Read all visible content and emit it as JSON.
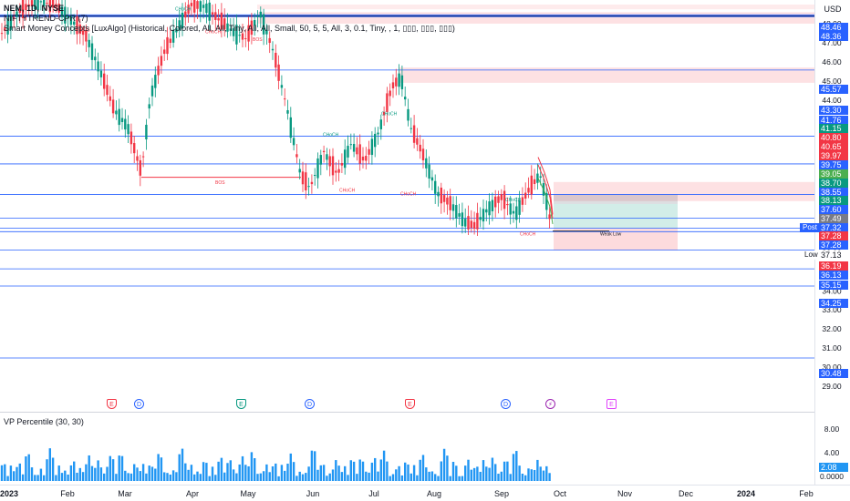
{
  "legend": {
    "symbol": "NEM, 1D, NYSE",
    "indicator_1": "NIFTYTREND-CPR  (7)",
    "indicator_2": "Smart Money Concepts [LuxAlgo] (Historical, Colored, All, All, Tiny, All, All, Small, 50, 5, 5, All, 3, 0.1, Tiny, , 1, ▯▯▯, ▯▯▯, ▯▯▯)"
  },
  "currency": "USD",
  "volume_pane": {
    "title": "VP Percentile (30, 30)"
  },
  "colors": {
    "up": "#089981",
    "down": "#f23645",
    "level_line": "#2962ff",
    "zone_red": "#f23645",
    "zone_green": "#089981",
    "volume": "#2196f3"
  },
  "price_scale": {
    "ticks": [
      "48.00",
      "47.00",
      "46.00",
      "45.00",
      "44.00",
      "43.00",
      "42.00",
      "41.00",
      "40.00",
      "39.00",
      "38.00",
      "37.00",
      "36.00",
      "35.00",
      "34.00",
      "33.00",
      "32.00",
      "31.00",
      "30.00",
      "29.00"
    ],
    "tags": [
      {
        "text": "48.46",
        "color": "#2962ff"
      },
      {
        "text": "48.36",
        "color": "#2962ff"
      },
      {
        "text": "45.57",
        "color": "#2962ff"
      },
      {
        "text": "43.30",
        "color": "#2962ff"
      },
      {
        "text": "41.76",
        "color": "#2962ff"
      },
      {
        "text": "41.15",
        "color": "#089981"
      },
      {
        "text": "40.80",
        "color": "#f23645"
      },
      {
        "text": "40.65",
        "color": "#f23645"
      },
      {
        "text": "39.97",
        "color": "#f23645"
      },
      {
        "text": "39.75",
        "color": "#2962ff"
      },
      {
        "text": "39.05",
        "color": "#4caf50"
      },
      {
        "text": "38.70",
        "color": "#089981"
      },
      {
        "text": "38.55",
        "color": "#2962ff"
      },
      {
        "text": "38.13",
        "color": "#089981"
      },
      {
        "text": "37.60",
        "color": "#2962ff"
      },
      {
        "text": "37.49",
        "color": "#787b86"
      },
      {
        "text": "37.32",
        "color": "#2962ff"
      },
      {
        "text": "37.28",
        "color": "#f23645"
      },
      {
        "text": "37.28",
        "color": "#2962ff"
      },
      {
        "text": "37.13",
        "color": "#ffffff"
      },
      {
        "text": "36.19",
        "color": "#f23645"
      },
      {
        "text": "36.13",
        "color": "#2962ff"
      },
      {
        "text": "35.15",
        "color": "#2962ff"
      },
      {
        "text": "34.25",
        "color": "#2962ff"
      },
      {
        "text": "30.48",
        "color": "#2962ff"
      }
    ],
    "side_labels": [
      {
        "text": "Post"
      },
      {
        "text": "Low"
      }
    ]
  },
  "volume_scale": {
    "ticks": [
      "8.00",
      "4.00",
      "0.0000"
    ],
    "last": "2.08"
  },
  "time_axis": [
    "2023",
    "Feb",
    "Mar",
    "Apr",
    "May",
    "Jun",
    "Jul",
    "Aug",
    "Sep",
    "Oct",
    "Nov",
    "Dec",
    "2024",
    "Feb"
  ],
  "events": [
    {
      "glyph": "E",
      "kind": "earnings"
    },
    {
      "glyph": "D",
      "kind": "dividend"
    },
    {
      "glyph": "E",
      "kind": "earnings"
    },
    {
      "glyph": "D",
      "kind": "dividend"
    },
    {
      "glyph": "E",
      "kind": "earnings"
    },
    {
      "glyph": "D",
      "kind": "dividend"
    },
    {
      "glyph": "⚡",
      "kind": "split"
    },
    {
      "glyph": "E",
      "kind": "earnings"
    }
  ],
  "smc_labels": {
    "bos": "BOS",
    "choch": "CHoCH",
    "weak_low": "Weak Low"
  }
}
